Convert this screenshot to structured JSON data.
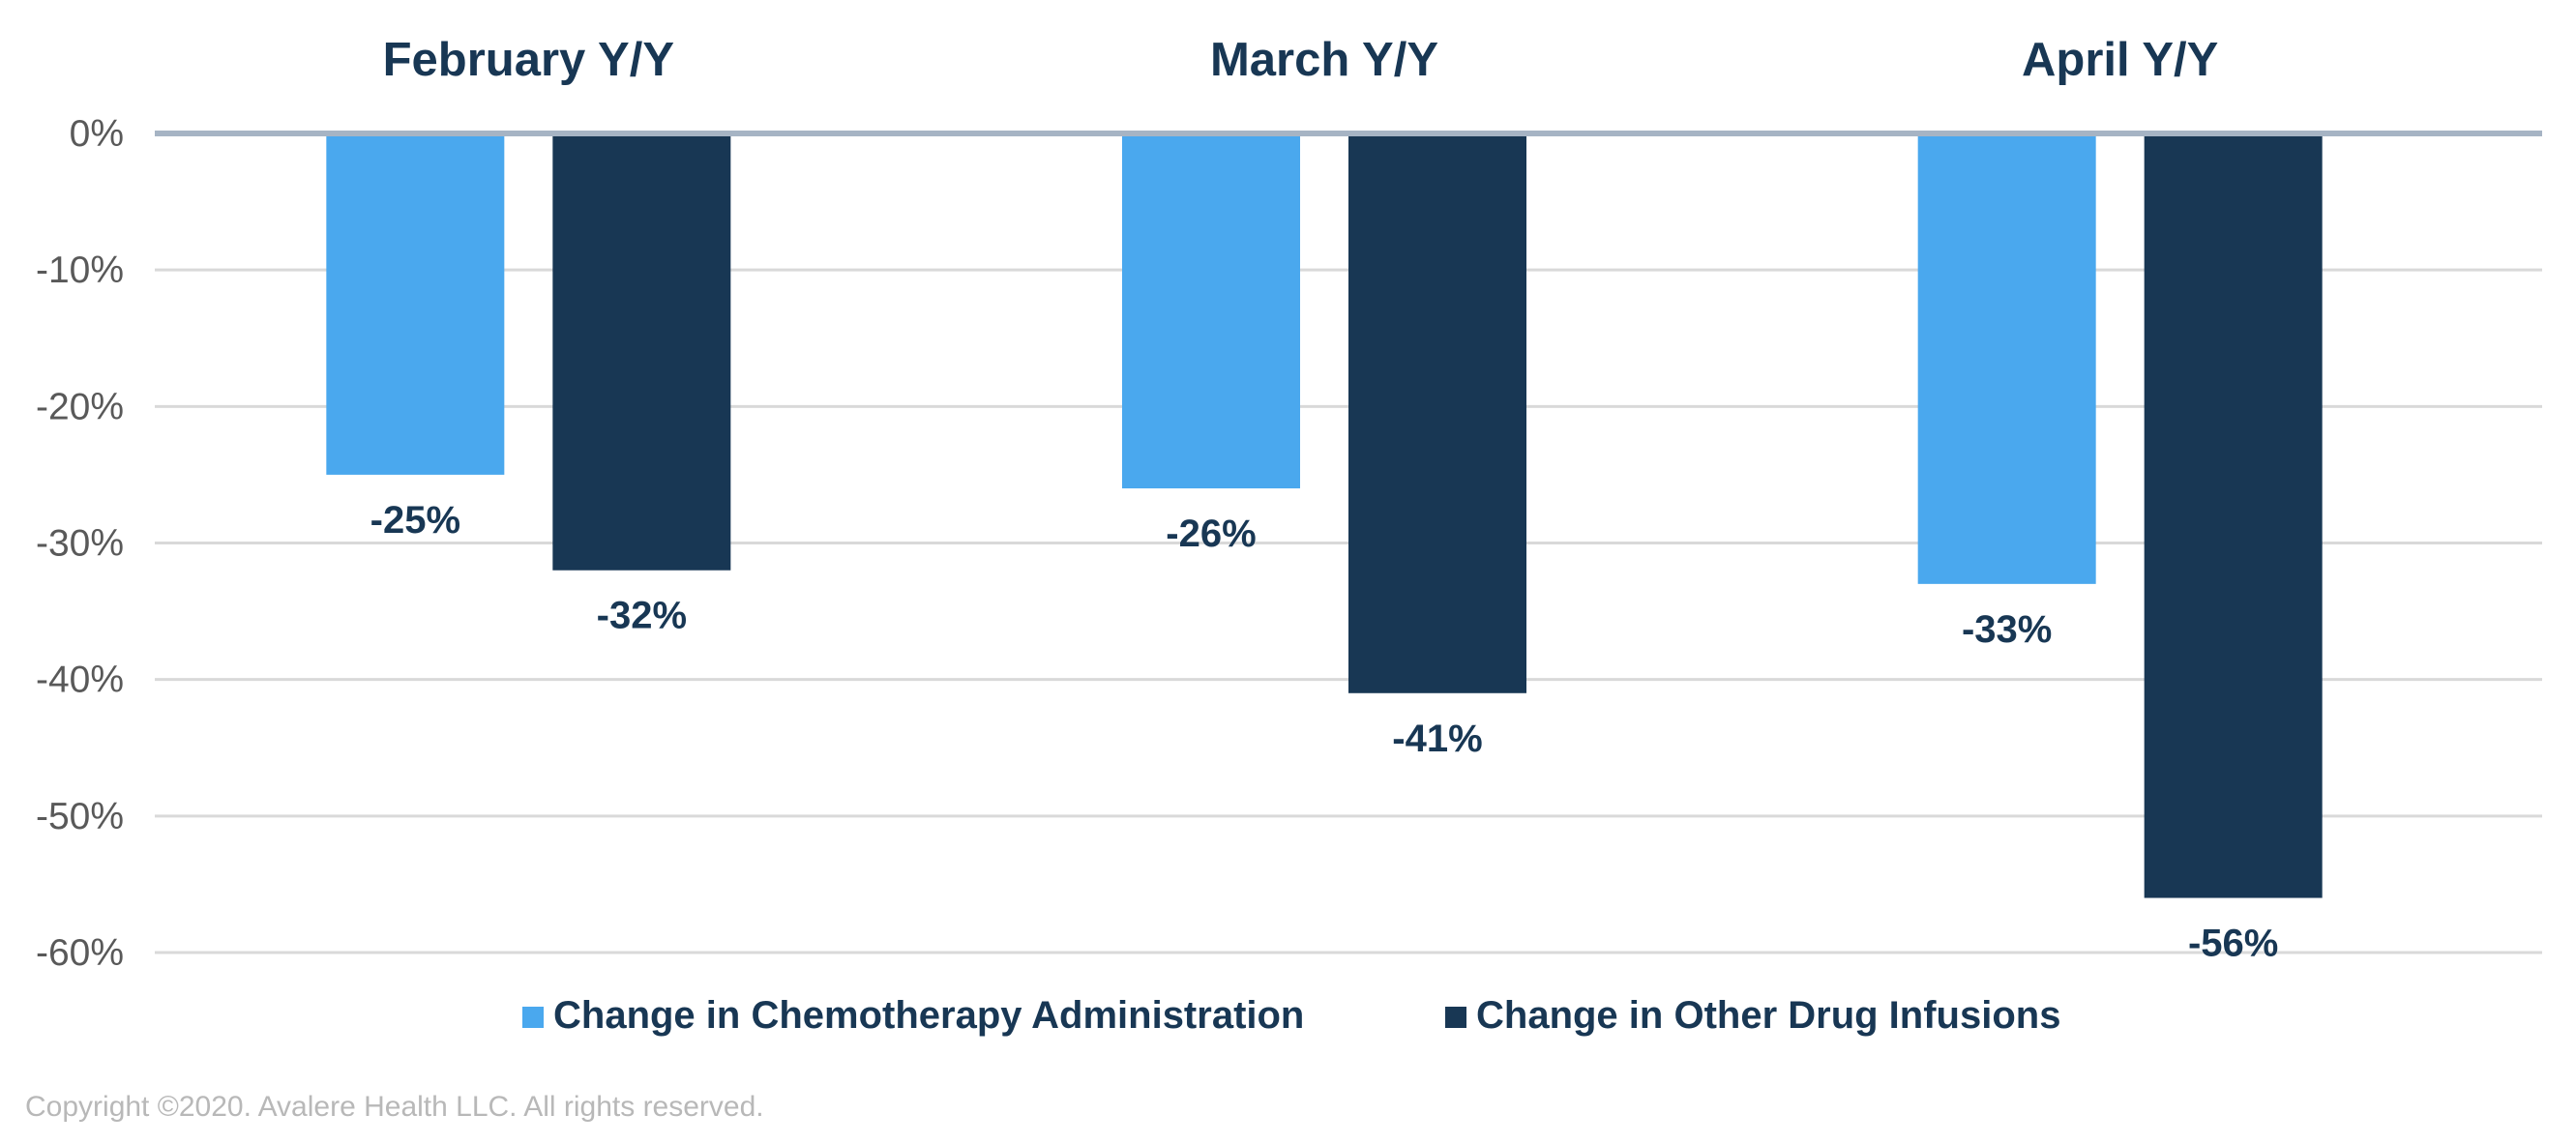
{
  "chart_data": {
    "type": "bar",
    "categories": [
      "February Y/Y",
      "March Y/Y",
      "April Y/Y"
    ],
    "series": [
      {
        "name": "Change in Chemotherapy Administration",
        "values": [
          -25,
          -26,
          -33
        ],
        "color": "#4aa8ee"
      },
      {
        "name": "Change in Other Drug Infusions",
        "values": [
          -32,
          -41,
          -56
        ],
        "color": "#183754"
      }
    ],
    "data_labels": [
      [
        "-25%",
        "-26%",
        "-33%"
      ],
      [
        "-32%",
        "-41%",
        "-56%"
      ]
    ],
    "yticks": [
      0,
      -10,
      -20,
      -30,
      -40,
      -50,
      -60
    ],
    "ytick_labels": [
      "0%",
      "-10%",
      "-20%",
      "-30%",
      "-40%",
      "-50%",
      "-60%"
    ],
    "ylim": [
      -60,
      0
    ],
    "category_labels_position": "top",
    "legend_position": "bottom-center",
    "grid": true
  },
  "colors": {
    "title_text": "#183754",
    "axis_text": "#595959",
    "grid": "#d9d9d9",
    "zero_line": "#a6b4c4"
  },
  "footer": {
    "copyright": "Copyright ©2020. Avalere Health LLC. All rights reserved."
  }
}
